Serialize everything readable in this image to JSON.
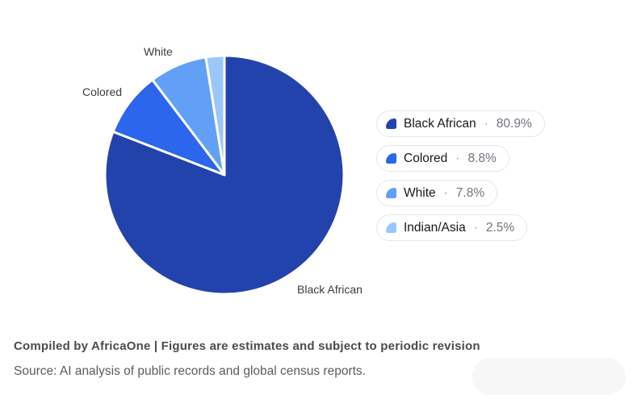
{
  "chart_data": {
    "type": "pie",
    "labels": [
      "Black African",
      "Colored",
      "White",
      "Indian/Asia"
    ],
    "values": [
      80.9,
      8.8,
      7.8,
      2.5
    ],
    "colors": [
      "#2343ac",
      "#2b66ec",
      "#61a0f6",
      "#9cc7fb"
    ],
    "start_angle_deg": 0,
    "direction": "clockwise",
    "slice_separator_color": "#ffffff",
    "callout_labels_shown": [
      "White",
      "Colored",
      "Black African"
    ],
    "legend_position": "right"
  },
  "callouts": {
    "white": "White",
    "colored": "Colored",
    "black_african": "Black African"
  },
  "legend": {
    "separator": "·",
    "items": [
      {
        "label": "Black African",
        "value": "80.9%",
        "color": "#2343ac"
      },
      {
        "label": "Colored",
        "value": "8.8%",
        "color": "#2b66ec"
      },
      {
        "label": "White",
        "value": "7.8%",
        "color": "#61a0f6"
      },
      {
        "label": "Indian/Asia",
        "value": "2.5%",
        "color": "#9cc7fb"
      }
    ]
  },
  "footer": {
    "compiled": "Compiled by AfricaOne | Figures are estimates and subject to periodic revision",
    "source": "Source: AI analysis of public records and global census reports."
  }
}
